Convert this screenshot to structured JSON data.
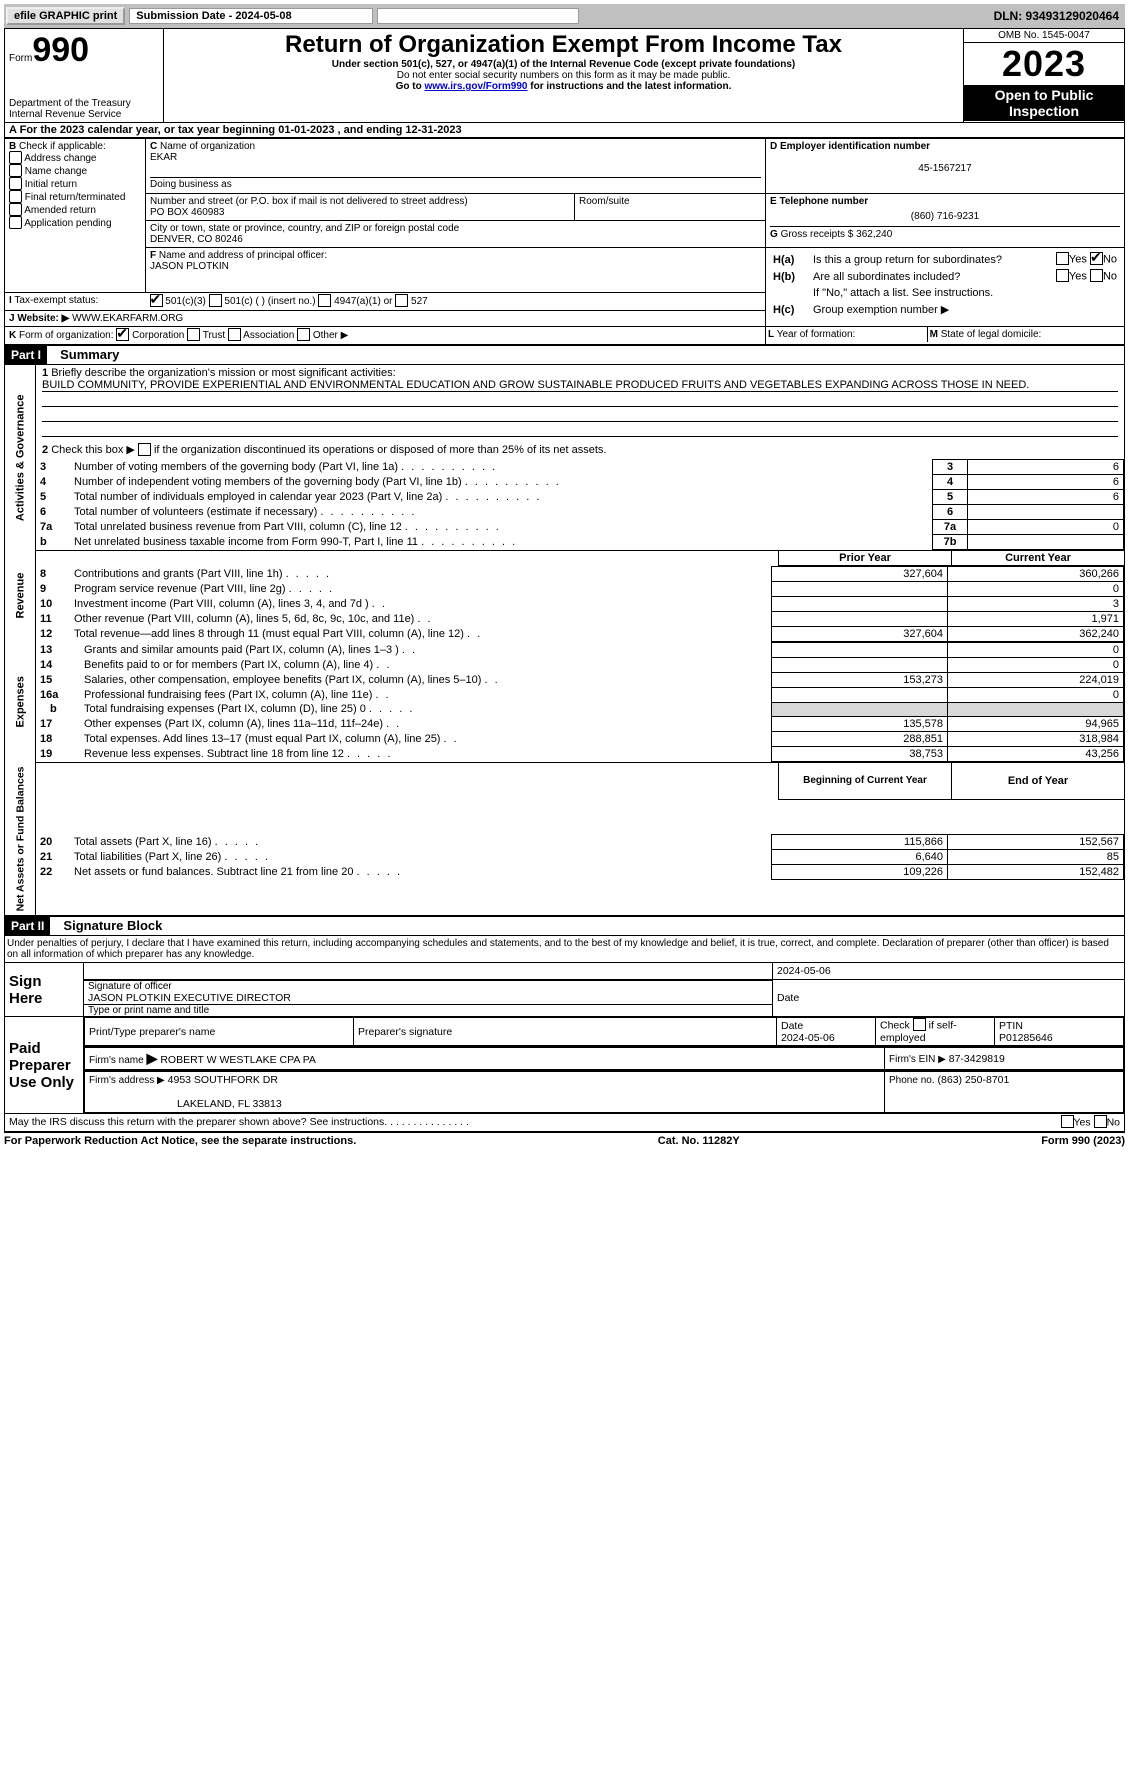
{
  "topbar": {
    "efile": "efile GRAPHIC print",
    "submission": "Submission Date - 2024-05-08",
    "dln": "DLN: 93493129020464"
  },
  "header": {
    "form_word": "Form",
    "form_num": "990",
    "title": "Return of Organization Exempt From Income Tax",
    "subtitle": "Under section 501(c), 527, or 4947(a)(1) of the Internal Revenue Code (except private foundations)",
    "ssn_warn": "Do not enter social security numbers on this form as it may be made public.",
    "goto": "Go to ",
    "goto_link": "www.irs.gov/Form990",
    "goto_tail": " for instructions and the latest information.",
    "dept": "Department of the Treasury\nInternal Revenue Service",
    "omb": "OMB No. 1545-0047",
    "year": "2023",
    "otp": "Open to Public Inspection"
  },
  "periodA": {
    "label": "For the 2023 calendar year, or tax year beginning ",
    "begin": "01-01-2023",
    "mid": " , and ending ",
    "end": "12-31-2023"
  },
  "boxB": {
    "label": "B",
    "check_if": "Check if applicable:",
    "items": [
      "Address change",
      "Name change",
      "Initial return",
      "Final return/terminated",
      "Amended return",
      "Application pending"
    ]
  },
  "boxC": {
    "label": "C",
    "name_label": "Name of organization",
    "name": "EKAR",
    "dba_label": "Doing business as",
    "dba": "",
    "street_label": "Number and street (or P.O. box if mail is not delivered to street address)",
    "street": "PO BOX 460983",
    "room_label": "Room/suite",
    "city_label": "City or town, state or province, country, and ZIP or foreign postal code",
    "city": "DENVER, CO  80246"
  },
  "boxD": {
    "label": "D Employer identification number",
    "value": "45-1567217"
  },
  "boxE": {
    "label": "E Telephone number",
    "value": "(860) 716-9231"
  },
  "boxG": {
    "label": "G",
    "text": "Gross receipts $",
    "value": "362,240"
  },
  "boxF": {
    "label": "F",
    "text": "Name and address of principal officer:",
    "value": "JASON PLOTKIN"
  },
  "boxH": {
    "a_label": "H(a)",
    "a_text": "Is this a group return for subordinates?",
    "a_yes": "Yes",
    "a_no": "No",
    "b_label": "H(b)",
    "b_text": "Are all subordinates included?",
    "b_yes": "Yes",
    "b_no": "No",
    "b_note": "If \"No,\" attach a list. See instructions.",
    "c_label": "H(c)",
    "c_text": "Group exemption number ▶"
  },
  "boxI": {
    "label": "I",
    "text": "Tax-exempt status:",
    "o1": "501(c)(3)",
    "o2a": "501(c) (",
    "o2b": ") (insert no.)",
    "o3": "4947(a)(1) or",
    "o4": "527"
  },
  "boxJ": {
    "label": "J",
    "text": "Website: ▶",
    "value": "WWW.EKARFARM.ORG"
  },
  "boxK": {
    "label": "K",
    "text": "Form of organization:",
    "o1": "Corporation",
    "o2": "Trust",
    "o3": "Association",
    "o4": "Other ▶"
  },
  "boxL": {
    "label": "L",
    "text": "Year of formation:"
  },
  "boxM": {
    "label": "M",
    "text": "State of legal domicile:"
  },
  "part1": {
    "header": "Part I",
    "title": "Summary",
    "l1": {
      "num": "1",
      "text": "Briefly describe the organization's mission or most significant activities:",
      "value": "BUILD COMMUNITY, PROVIDE EXPERIENTIAL AND ENVIRONMENTAL EDUCATION AND GROW SUSTAINABLE PRODUCED FRUITS AND VEGETABLES EXPANDING ACROSS THOSE IN NEED."
    },
    "l2": {
      "num": "2",
      "text": "Check this box ▶",
      "tail": "if the organization discontinued its operations or disposed of more than 25% of its net assets."
    },
    "gov_label": "Activities & Governance",
    "rev_label": "Revenue",
    "exp_label": "Expenses",
    "net_label": "Net Assets or Fund Balances",
    "lines_gov": [
      {
        "num": "3",
        "text": "Number of voting members of the governing body (Part VI, line 1a)",
        "box": "3",
        "val": "6"
      },
      {
        "num": "4",
        "text": "Number of independent voting members of the governing body (Part VI, line 1b)",
        "box": "4",
        "val": "6"
      },
      {
        "num": "5",
        "text": "Total number of individuals employed in calendar year 2023 (Part V, line 2a)",
        "box": "5",
        "val": "6"
      },
      {
        "num": "6",
        "text": "Total number of volunteers (estimate if necessary)",
        "box": "6",
        "val": ""
      },
      {
        "num": "7a",
        "text": "Total unrelated business revenue from Part VIII, column (C), line 12",
        "box": "7a",
        "val": "0"
      },
      {
        "num": "",
        "text": "Net unrelated business taxable income from Form 990-T, Part I, line 11",
        "box": "7b",
        "val": "",
        "prefix": "b"
      }
    ],
    "yr_hdr": {
      "prior": "Prior Year",
      "current": "Current Year"
    },
    "lines_rev": [
      {
        "num": "8",
        "text": "Contributions and grants (Part VIII, line 1h)",
        "prior": "327,604",
        "cur": "360,266"
      },
      {
        "num": "9",
        "text": "Program service revenue (Part VIII, line 2g)",
        "prior": "",
        "cur": "0"
      },
      {
        "num": "10",
        "text": "Investment income (Part VIII, column (A), lines 3, 4, and 7d )",
        "prior": "",
        "cur": "3"
      },
      {
        "num": "11",
        "text": "Other revenue (Part VIII, column (A), lines 5, 6d, 8c, 9c, 10c, and 11e)",
        "prior": "",
        "cur": "1,971"
      },
      {
        "num": "12",
        "text": "Total revenue—add lines 8 through 11 (must equal Part VIII, column (A), line 12)",
        "prior": "327,604",
        "cur": "362,240"
      }
    ],
    "lines_exp": [
      {
        "num": "13",
        "text": "Grants and similar amounts paid (Part IX, column (A), lines 1–3 )",
        "prior": "",
        "cur": "0"
      },
      {
        "num": "14",
        "text": "Benefits paid to or for members (Part IX, column (A), line 4)",
        "prior": "",
        "cur": "0"
      },
      {
        "num": "15",
        "text": "Salaries, other compensation, employee benefits (Part IX, column (A), lines 5–10)",
        "prior": "153,273",
        "cur": "224,019"
      },
      {
        "num": "16a",
        "text": "Professional fundraising fees (Part IX, column (A), line 11e)",
        "prior": "",
        "cur": "0"
      },
      {
        "num": "b",
        "text": "Total fundraising expenses (Part IX, column (D), line 25) 0",
        "prior": "SHADE",
        "cur": "SHADE",
        "indent": true
      },
      {
        "num": "17",
        "text": "Other expenses (Part IX, column (A), lines 11a–11d, 11f–24e)",
        "prior": "135,578",
        "cur": "94,965"
      },
      {
        "num": "18",
        "text": "Total expenses. Add lines 13–17 (must equal Part IX, column (A), line 25)",
        "prior": "288,851",
        "cur": "318,984"
      },
      {
        "num": "19",
        "text": "Revenue less expenses. Subtract line 18 from line 12",
        "prior": "38,753",
        "cur": "43,256"
      }
    ],
    "net_hdr": {
      "prior": "Beginning of Current Year",
      "current": "End of Year"
    },
    "lines_net": [
      {
        "num": "20",
        "text": "Total assets (Part X, line 16)",
        "prior": "115,866",
        "cur": "152,567"
      },
      {
        "num": "21",
        "text": "Total liabilities (Part X, line 26)",
        "prior": "6,640",
        "cur": "85"
      },
      {
        "num": "22",
        "text": "Net assets or fund balances. Subtract line 21 from line 20",
        "prior": "109,226",
        "cur": "152,482"
      }
    ]
  },
  "part2": {
    "header": "Part II",
    "title": "Signature Block",
    "perjury": "Under penalties of perjury, I declare that I have examined this return, including accompanying schedules and statements, and to the best of my knowledge and belief, it is true, correct, and complete. Declaration of preparer (other than officer) is based on all information of which preparer has any knowledge.",
    "sign_here": "Sign Here",
    "sig_officer_lbl": "Signature of officer",
    "sig_date": "2024-05-06",
    "date_lbl": "Date",
    "officer_name": "JASON PLOTKIN  EXECUTIVE DIRECTOR",
    "type_name_lbl": "Type or print name and title",
    "paid": "Paid Preparer Use Only",
    "prep_name_lbl": "Print/Type preparer's name",
    "prep_sig_lbl": "Preparer's signature",
    "prep_date_lbl": "Date",
    "prep_date": "2024-05-06",
    "check_self": "Check",
    "check_self2": "if self-employed",
    "ptin_lbl": "PTIN",
    "ptin": "P01285646",
    "firm_name_lbl": "Firm's name",
    "firm_name": "ROBERT W WESTLAKE CPA PA",
    "firm_ein_lbl": "Firm's EIN ▶",
    "firm_ein": "87-3429819",
    "firm_addr_lbl": "Firm's address ▶",
    "firm_addr1": "4953 SOUTHFORK DR",
    "firm_addr2": "LAKELAND, FL  33813",
    "phone_lbl": "Phone no.",
    "phone": "(863) 250-8701",
    "irs_discuss": "May the IRS discuss this return with the preparer shown above? See instructions.",
    "yes": "Yes",
    "no": "No"
  },
  "footer": {
    "left": "For Paperwork Reduction Act Notice, see the separate instructions.",
    "mid": "Cat. No. 11282Y",
    "right": "Form 990 (2023)"
  }
}
